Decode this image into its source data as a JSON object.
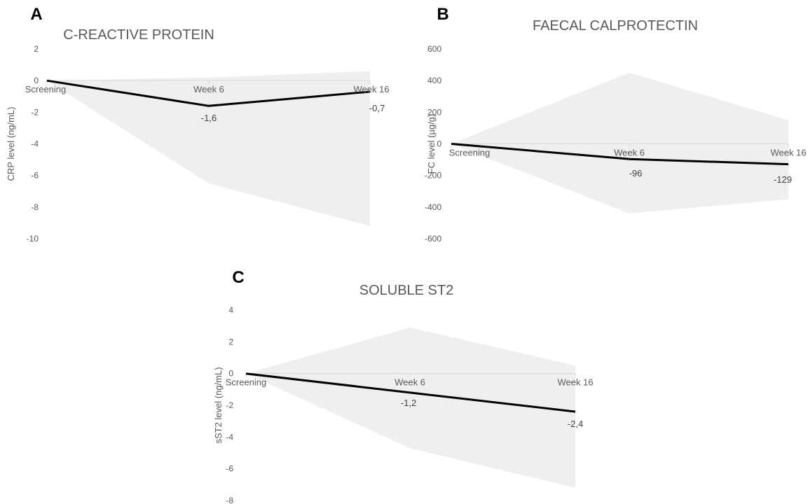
{
  "chart_data": [
    {
      "panel_label": "A",
      "type": "area",
      "title": "C-REACTIVE PROTEIN",
      "xlabel": "",
      "ylabel": "CRP level (ng/mL)",
      "categories": [
        "Screening",
        "Week 6",
        "Week 16"
      ],
      "ylim": [
        -10,
        2
      ],
      "yticks": [
        2,
        0,
        -2,
        -4,
        -6,
        -8,
        -10
      ],
      "grid": false,
      "legend": "none",
      "series": [
        {
          "kind": "band",
          "upper": [
            0,
            0.2,
            0.6
          ],
          "lower": [
            0,
            -6.5,
            -9.2
          ]
        },
        {
          "kind": "line",
          "values": [
            0,
            -1.6,
            -0.7
          ],
          "data_labels": [
            "",
            "-1,6",
            "-0,7"
          ]
        }
      ]
    },
    {
      "panel_label": "B",
      "type": "area",
      "title": "FAECAL CALPROTECTIN",
      "xlabel": "",
      "ylabel": "FC level (µg/g)",
      "categories": [
        "Screening",
        "Week 6",
        "Week 16"
      ],
      "ylim": [
        -600,
        600
      ],
      "yticks": [
        600,
        400,
        200,
        0,
        -200,
        -400,
        -600
      ],
      "grid": false,
      "legend": "none",
      "series": [
        {
          "kind": "band",
          "upper": [
            0,
            450,
            150
          ],
          "lower": [
            0,
            -440,
            -350
          ]
        },
        {
          "kind": "line",
          "values": [
            0,
            -96,
            -129
          ],
          "data_labels": [
            "",
            "-96",
            "-129"
          ]
        }
      ]
    },
    {
      "panel_label": "C",
      "type": "area",
      "title": "SOLUBLE ST2",
      "xlabel": "",
      "ylabel": "sST2 level (ng/mL)",
      "categories": [
        "Screening",
        "Week 6",
        "Week 16"
      ],
      "ylim": [
        -8,
        4
      ],
      "yticks": [
        4,
        2,
        0,
        -2,
        -4,
        -6,
        -8
      ],
      "grid": false,
      "legend": "none",
      "series": [
        {
          "kind": "band",
          "upper": [
            0,
            2.9,
            0.5
          ],
          "lower": [
            0,
            -4.7,
            -7.2
          ]
        },
        {
          "kind": "line",
          "values": [
            0,
            -1.2,
            -2.4
          ],
          "data_labels": [
            "",
            "-1,2",
            "-2,4"
          ]
        }
      ]
    }
  ],
  "colors": {
    "band": "#efefef",
    "line": "#000000",
    "axis": "#d9d9d9",
    "text": "#595959",
    "panel_label": "#000000"
  }
}
